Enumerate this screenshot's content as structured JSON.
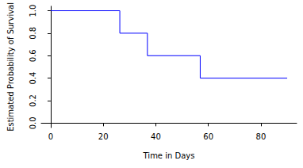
{
  "chart_data": {
    "type": "line",
    "x_label": "Time in Days",
    "y_label": "Estimated Probability of Survival",
    "x": [
      0,
      26.3,
      36.8,
      56.9,
      90
    ],
    "values": [
      1.0,
      0.8,
      0.6,
      0.4,
      0.4
    ],
    "color": "#0000ff",
    "line_style": "step",
    "xlim": [
      -3.6,
      93.6
    ],
    "xticks": [
      0,
      20,
      40,
      60,
      80
    ],
    "ylim": [
      -0.04,
      1.04
    ],
    "yticks": [
      {
        "value": 0,
        "label": "0.0"
      },
      0.2,
      0.4,
      0.6,
      0.8,
      {
        "value": 1,
        "label": "1.0"
      }
    ],
    "grid": false
  }
}
